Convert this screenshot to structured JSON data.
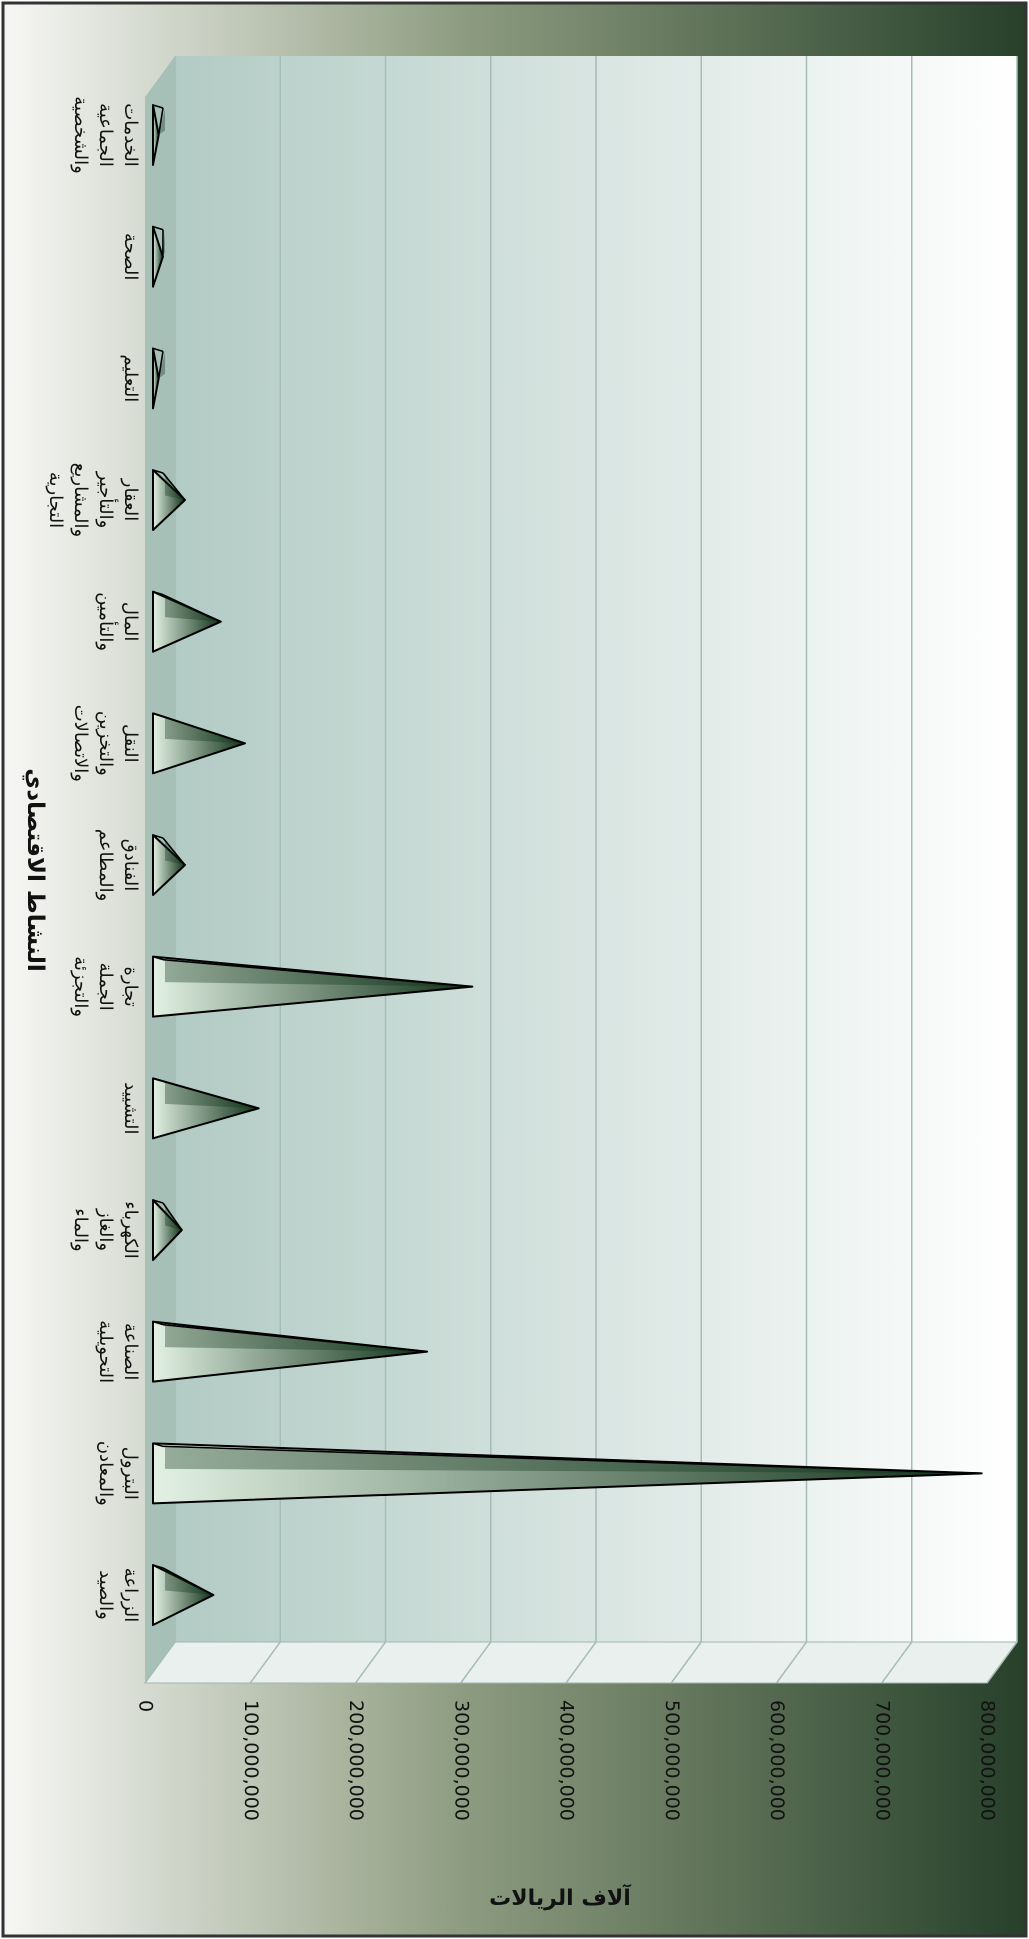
{
  "chart_data": {
    "type": "bar",
    "orientation": "rotated-90-clockwise",
    "title": "",
    "xlabel": "النشاط الاقتصادي",
    "ylabel": "آلاف الريالات",
    "ylim": [
      0,
      800000000
    ],
    "yticks": [
      0,
      100000000,
      200000000,
      300000000,
      400000000,
      500000000,
      600000000,
      700000000,
      800000000
    ],
    "ytick_labels": [
      "0",
      "100,000,000",
      "200,000,000",
      "300,000,000",
      "400,000,000",
      "500,000,000",
      "600,000,000",
      "700,000,000",
      "800,000,000"
    ],
    "grid": true,
    "legend": "none",
    "categories": [
      [
        "الزراعة",
        "والصيد"
      ],
      [
        "البترول",
        "والمعادن"
      ],
      [
        "الصناعة",
        "التحويلية"
      ],
      [
        "الكهرباء",
        "والغاز",
        "والماء"
      ],
      [
        "التشييد"
      ],
      [
        "تجارة",
        "الجملة",
        "والتجزئة"
      ],
      [
        "الفنادق",
        "والمطاعم"
      ],
      [
        "النقل",
        "والتخزين",
        "والاتصالات"
      ],
      [
        "المال",
        "والتأمين"
      ],
      [
        "العقار",
        "والتأجير",
        "والمشاريع",
        "التجارية"
      ],
      [
        "التعليم"
      ],
      [
        "الصحة"
      ],
      [
        "الخدمات",
        "الجماعية",
        "والشخصية"
      ]
    ],
    "values": [
      65000000,
      795000000,
      268000000,
      35000000,
      108000000,
      311000000,
      38000000,
      95000000,
      72000000,
      38000000,
      13000000,
      17000000,
      13000000
    ]
  },
  "colors": {
    "background_dark": "#27402a",
    "background_mid": "#8d9c80",
    "background_light": "#f7f7f5",
    "wall_light": "#ffffff",
    "wall_dark": "#b2cbc4",
    "gridline": "#a6bdb6",
    "cone_light": "#e2f1e3",
    "cone_dark": "#0e3017",
    "outline": "#000000",
    "text": "#111111",
    "frame": "#333333"
  }
}
